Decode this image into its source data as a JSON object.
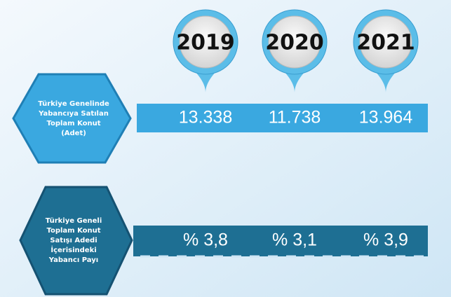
{
  "years": [
    "2019",
    "2020",
    "2021"
  ],
  "rows": [
    {
      "label": [
        "Türkiye Genelinde",
        "Yabancıya Satılan",
        "Toplam Konut",
        "(Adet)"
      ],
      "values": [
        "13.338",
        "11.738",
        "13.964"
      ]
    },
    {
      "label": [
        "Türkiye Geneli",
        "Toplam Konut",
        "Satışı Adedi",
        "İçerisindeki",
        "Yabancı Payı"
      ],
      "values": [
        "% 3,8",
        "% 3,1",
        "% 3,9"
      ]
    }
  ]
}
